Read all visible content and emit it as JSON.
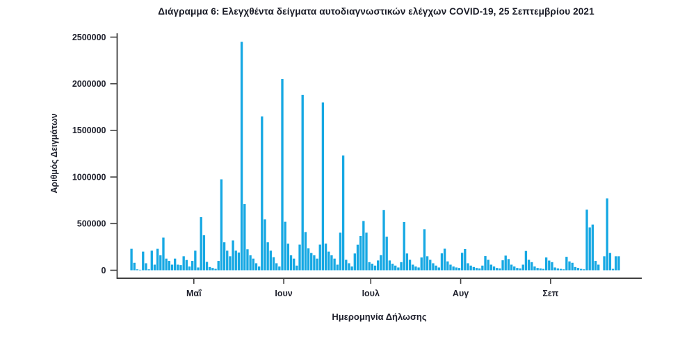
{
  "chart": {
    "title": "Διάγραμμα 6: Ελεγχθέντα δείγματα αυτοδιαγνωστικών ελέγχων COVID-19, 25 Σεπτεμβρίου 2021",
    "x_axis_label": "Ημερομηνία Δήλωσης",
    "y_axis_label": "Αριθμός Δειγμάτων"
  },
  "chart_data": {
    "type": "bar",
    "title": "Διάγραμμα 6: Ελεγχθέντα δείγματα αυτοδιαγνωστικών ελέγχων COVID-19, 25 Σεπτεμβρίου 2021",
    "xlabel": "Ημερομηνία Δήλωσης",
    "ylabel": "Αριθμός Δειγμάτων",
    "bar_color": "#16a8e3",
    "axis_color": "#3f3f3f",
    "ylim": [
      0,
      2500000
    ],
    "y_ticks": [
      0,
      500000,
      1000000,
      1500000,
      2000000,
      2500000
    ],
    "y_tick_labels": [
      "0",
      "500000",
      "1000000",
      "1500000",
      "2000000",
      "2500000"
    ],
    "x_tick_labels": [
      "Μαΐ",
      "Ιουν",
      "Ιουλ",
      "Αυγ",
      "Σεπ"
    ],
    "start_date": "2021-04-09",
    "days_per_segment": [
      22,
      31,
      30,
      31,
      31,
      24
    ],
    "grid": false,
    "legend": "none",
    "values": [
      230000,
      80000,
      10000,
      5000,
      200000,
      75000,
      10000,
      210000,
      60000,
      230000,
      160000,
      350000,
      125000,
      100000,
      60000,
      125000,
      60000,
      55000,
      150000,
      110000,
      40000,
      100000,
      210000,
      30000,
      570000,
      375000,
      90000,
      35000,
      25000,
      15000,
      100000,
      975000,
      300000,
      210000,
      150000,
      320000,
      210000,
      190000,
      2450000,
      710000,
      225000,
      160000,
      125000,
      75000,
      40000,
      1650000,
      545000,
      300000,
      210000,
      140000,
      75000,
      40000,
      2050000,
      520000,
      285000,
      160000,
      125000,
      50000,
      275000,
      1880000,
      410000,
      235000,
      185000,
      160000,
      125000,
      275000,
      1800000,
      286000,
      200000,
      160000,
      125000,
      60000,
      403000,
      1230000,
      112000,
      75000,
      40000,
      180000,
      274000,
      368000,
      528000,
      403000,
      87000,
      70000,
      50000,
      105000,
      162000,
      645000,
      360000,
      105000,
      70000,
      50000,
      30000,
      87000,
      517000,
      180000,
      112000,
      60000,
      40000,
      30000,
      137000,
      440000,
      150000,
      112000,
      75000,
      50000,
      30000,
      181000,
      231000,
      95000,
      60000,
      40000,
      30000,
      25000,
      187000,
      227000,
      75000,
      50000,
      35000,
      25000,
      20000,
      50000,
      152000,
      112000,
      60000,
      40000,
      25000,
      20000,
      107000,
      157000,
      120000,
      60000,
      40000,
      25000,
      20000,
      60000,
      207000,
      112000,
      87000,
      40000,
      25000,
      20000,
      15000,
      137000,
      104000,
      87000,
      30000,
      20000,
      15000,
      10000,
      144000,
      95000,
      80000,
      35000,
      25000,
      15000,
      10000,
      650000,
      460000,
      490000,
      100000,
      60000,
      0,
      150000,
      770000,
      185000,
      15000,
      150000,
      150000
    ]
  }
}
